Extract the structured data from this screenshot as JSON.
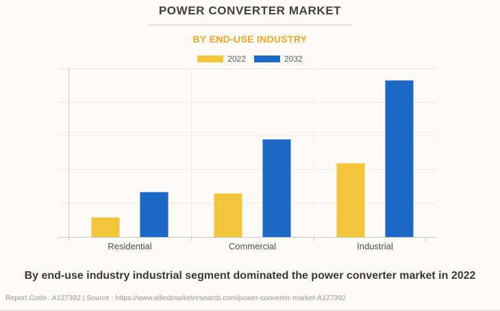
{
  "page": {
    "background": "#FDFBF6",
    "title": "POWER CONVERTER MARKET",
    "subtitle": "BY END-USE INDUSTRY",
    "caption": "By end-use industry industrial segment dominated the power converter market in 2022",
    "footer_text": "Report Code : A127392   |   Source : https://www.alliedmarketresearch.com/power-converter-market-A127392"
  },
  "colors": {
    "accent_orange": "#F8A428",
    "series_2022_yellow": "#F2C53B",
    "series_2032_blue": "#1B68C5",
    "title_text": "#3F3F3F",
    "gridline": "#EAE8E3",
    "axis_line": "#C9C7C3"
  },
  "legend": {
    "items": [
      {
        "label": "2022",
        "color": "#F2C53B"
      },
      {
        "label": "2032",
        "color": "#1B68C5"
      }
    ]
  },
  "chart_data": {
    "type": "bar",
    "title": "POWER CONVERTER MARKET",
    "subtitle": "BY END-USE INDUSTRY",
    "categories": [
      "Residential",
      "Commercial",
      "Industrial"
    ],
    "series": [
      {
        "name": "2022",
        "color": "#F2C53B",
        "values": [
          0.6,
          1.3,
          2.2
        ]
      },
      {
        "name": "2032",
        "color": "#1B68C5",
        "values": [
          1.35,
          2.9,
          4.65
        ]
      }
    ],
    "xlabel": "",
    "ylabel": "",
    "value_axis": {
      "ylim": [
        0,
        5
      ],
      "tick_labels_visible": false,
      "gridline_interval": 1
    },
    "grid": true,
    "legend_position": "top",
    "note": "value axis has no numeric labels in the image; values are estimated in gridline units (1 gridline = 1 unit, 5 gridline intervals total)"
  }
}
